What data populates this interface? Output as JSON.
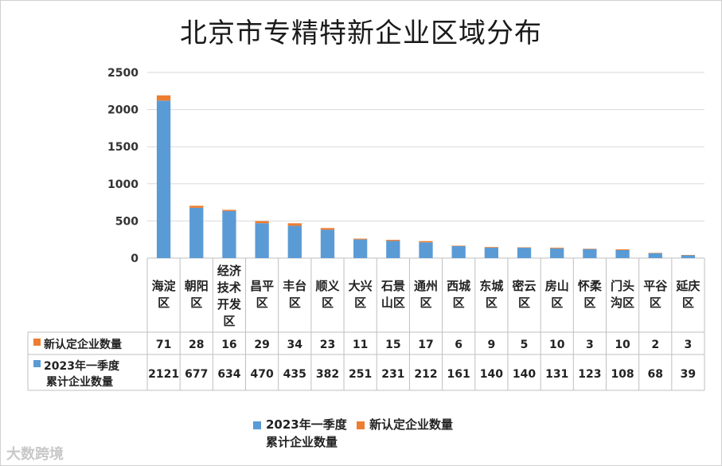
{
  "title": "北京市专精特新企业区域分布",
  "colors": {
    "cumulative": "#5b9bd5",
    "new": "#ed7d31"
  },
  "chart_data": {
    "type": "bar",
    "stacked": true,
    "title": "北京市专精特新企业区域分布",
    "categories": [
      [
        "海淀",
        "区"
      ],
      [
        "朝阳",
        "区"
      ],
      [
        "经济",
        "技术",
        "开发",
        "区"
      ],
      [
        "昌平",
        "区"
      ],
      [
        "丰台",
        "区"
      ],
      [
        "顺义",
        "区"
      ],
      [
        "大兴",
        "区"
      ],
      [
        "石景",
        "山区"
      ],
      [
        "通州",
        "区"
      ],
      [
        "西城",
        "区"
      ],
      [
        "东城",
        "区"
      ],
      [
        "密云",
        "区"
      ],
      [
        "房山",
        "区"
      ],
      [
        "怀柔",
        "区"
      ],
      [
        "门头",
        "沟区"
      ],
      [
        "平谷",
        "区"
      ],
      [
        "延庆",
        "区"
      ]
    ],
    "series": [
      {
        "name": "2023年一季度累计企业数量",
        "name_lines": [
          "2023年一季度",
          "累计企业数量"
        ],
        "color": "#5b9bd5",
        "values": [
          2121,
          677,
          634,
          470,
          435,
          382,
          251,
          231,
          212,
          161,
          140,
          140,
          131,
          123,
          108,
          68,
          39
        ]
      },
      {
        "name": "新认定企业数量",
        "name_lines": [
          "新认定企业数量"
        ],
        "color": "#ed7d31",
        "values": [
          71,
          28,
          16,
          29,
          34,
          23,
          11,
          15,
          17,
          6,
          9,
          5,
          10,
          3,
          10,
          2,
          3
        ]
      }
    ],
    "ylim": [
      0,
      2500
    ],
    "yticks": [
      0,
      500,
      1000,
      1500,
      2000,
      2500
    ],
    "grid": true,
    "legend": "bottom",
    "data_table": true
  },
  "legend": {
    "cumulative_line1": "2023年一季度",
    "cumulative_line2": "累计企业数量",
    "new": "新认定企业数量"
  },
  "watermark": "大数跨境"
}
